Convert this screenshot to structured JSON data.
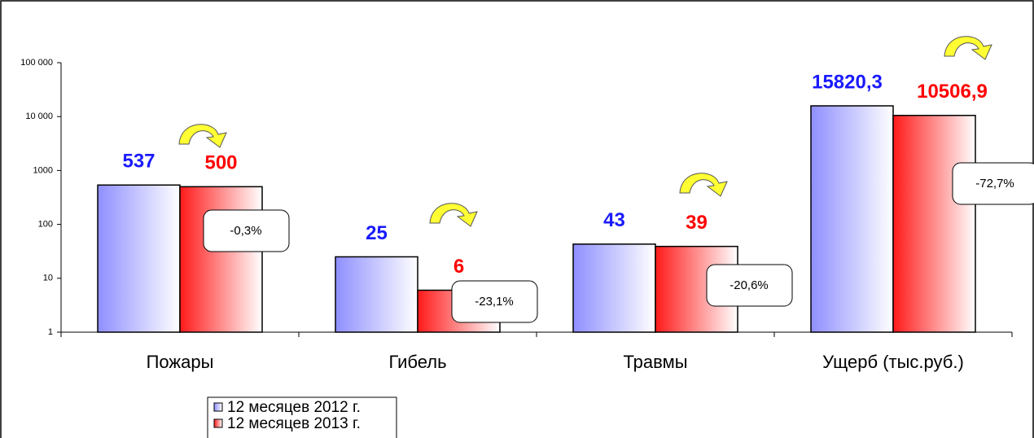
{
  "chart_data": {
    "type": "bar",
    "categories": [
      "Пожары",
      "Гибель",
      "Травмы",
      "Ущерб (тыс.руб.)"
    ],
    "series": [
      {
        "name": "12 месяцев 2012 г.",
        "color": "#1a1aff",
        "fill": "#8f8fff",
        "values": [
          537,
          25,
          43,
          15820.3
        ],
        "value_labels": [
          "537",
          "25",
          "43",
          "15820,3"
        ]
      },
      {
        "name": "12 месяцев 2013 г.",
        "color": "#ff0000",
        "fill": "#ff1a1a",
        "values": [
          500,
          6,
          39,
          10506.9
        ],
        "value_labels": [
          "500",
          "6",
          "39",
          "10506,9"
        ]
      }
    ],
    "annotations": [
      "-0,3%",
      "-23,1%",
      "-20,6%",
      "-72,7%"
    ],
    "ylim": [
      1,
      100000
    ],
    "log_scale": true,
    "yticks": [
      1,
      10,
      100,
      1000,
      {
        "value": 10000,
        "label": "10 000"
      },
      {
        "value": 100000,
        "label": "100 000"
      }
    ],
    "legend": "bottom-left"
  }
}
